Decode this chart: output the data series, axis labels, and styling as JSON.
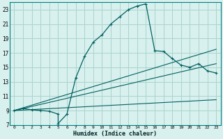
{
  "xlabel": "Humidex (Indice chaleur)",
  "bg_color": "#d8f0ee",
  "grid_color": "#aad4cc",
  "line_color": "#006060",
  "xlim": [
    -0.5,
    23.5
  ],
  "ylim": [
    7,
    24
  ],
  "xticks": [
    0,
    1,
    2,
    3,
    4,
    5,
    6,
    7,
    8,
    9,
    10,
    11,
    12,
    13,
    14,
    15,
    16,
    17,
    18,
    19,
    20,
    21,
    22,
    23
  ],
  "yticks": [
    7,
    9,
    11,
    13,
    15,
    17,
    19,
    21,
    23
  ],
  "curve1_x": [
    0,
    1,
    2,
    3,
    4,
    5,
    5,
    6,
    7,
    8,
    9,
    10,
    11,
    12,
    13,
    14,
    15,
    16,
    17,
    18,
    19,
    20,
    21,
    22,
    23
  ],
  "curve1_y": [
    9.0,
    9.3,
    9.1,
    9.0,
    8.9,
    8.5,
    7.2,
    8.5,
    13.5,
    16.5,
    18.5,
    19.5,
    21.0,
    22.0,
    23.0,
    23.5,
    23.8,
    17.3,
    17.2,
    16.2,
    15.3,
    15.0,
    15.5,
    14.5,
    14.2
  ],
  "line1_x": [
    0,
    23
  ],
  "line1_y": [
    9.0,
    10.5
  ],
  "line2_x": [
    0,
    23
  ],
  "line2_y": [
    9.0,
    15.5
  ],
  "line3_x": [
    0,
    23
  ],
  "line3_y": [
    9.0,
    17.5
  ]
}
